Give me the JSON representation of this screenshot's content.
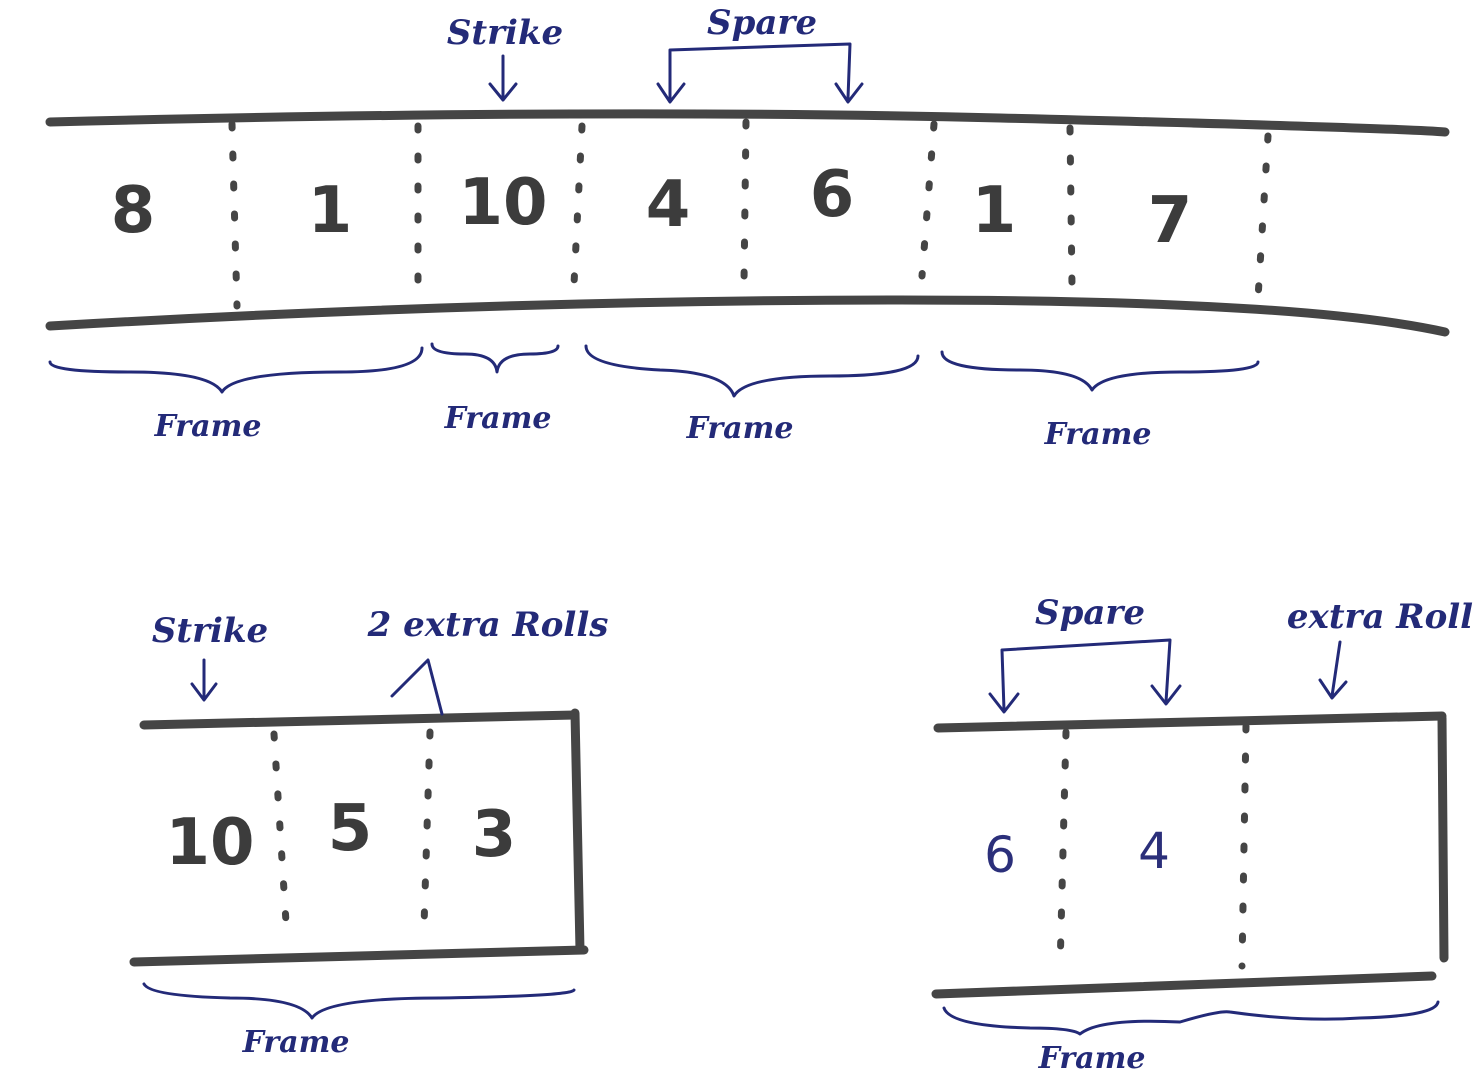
{
  "scoreboard": {
    "cells": [
      "8",
      "1",
      "10",
      "4",
      "6",
      "1",
      "7"
    ],
    "annotations": {
      "strike": "Strike",
      "spare": "Spare"
    },
    "frame_labels": [
      "Frame",
      "Frame",
      "Frame",
      "Frame"
    ]
  },
  "last_frame_strike": {
    "cells": [
      "10",
      "5",
      "3"
    ],
    "annotations": {
      "strike": "Strike",
      "extra": "2 extra Rolls"
    },
    "frame_label": "Frame"
  },
  "last_frame_spare": {
    "cells": [
      "6",
      "4"
    ],
    "annotations": {
      "spare": "Spare",
      "extra": "extra Roll"
    },
    "frame_label": "Frame"
  },
  "colors": {
    "marker": "#454545",
    "pen": "#232a78"
  }
}
